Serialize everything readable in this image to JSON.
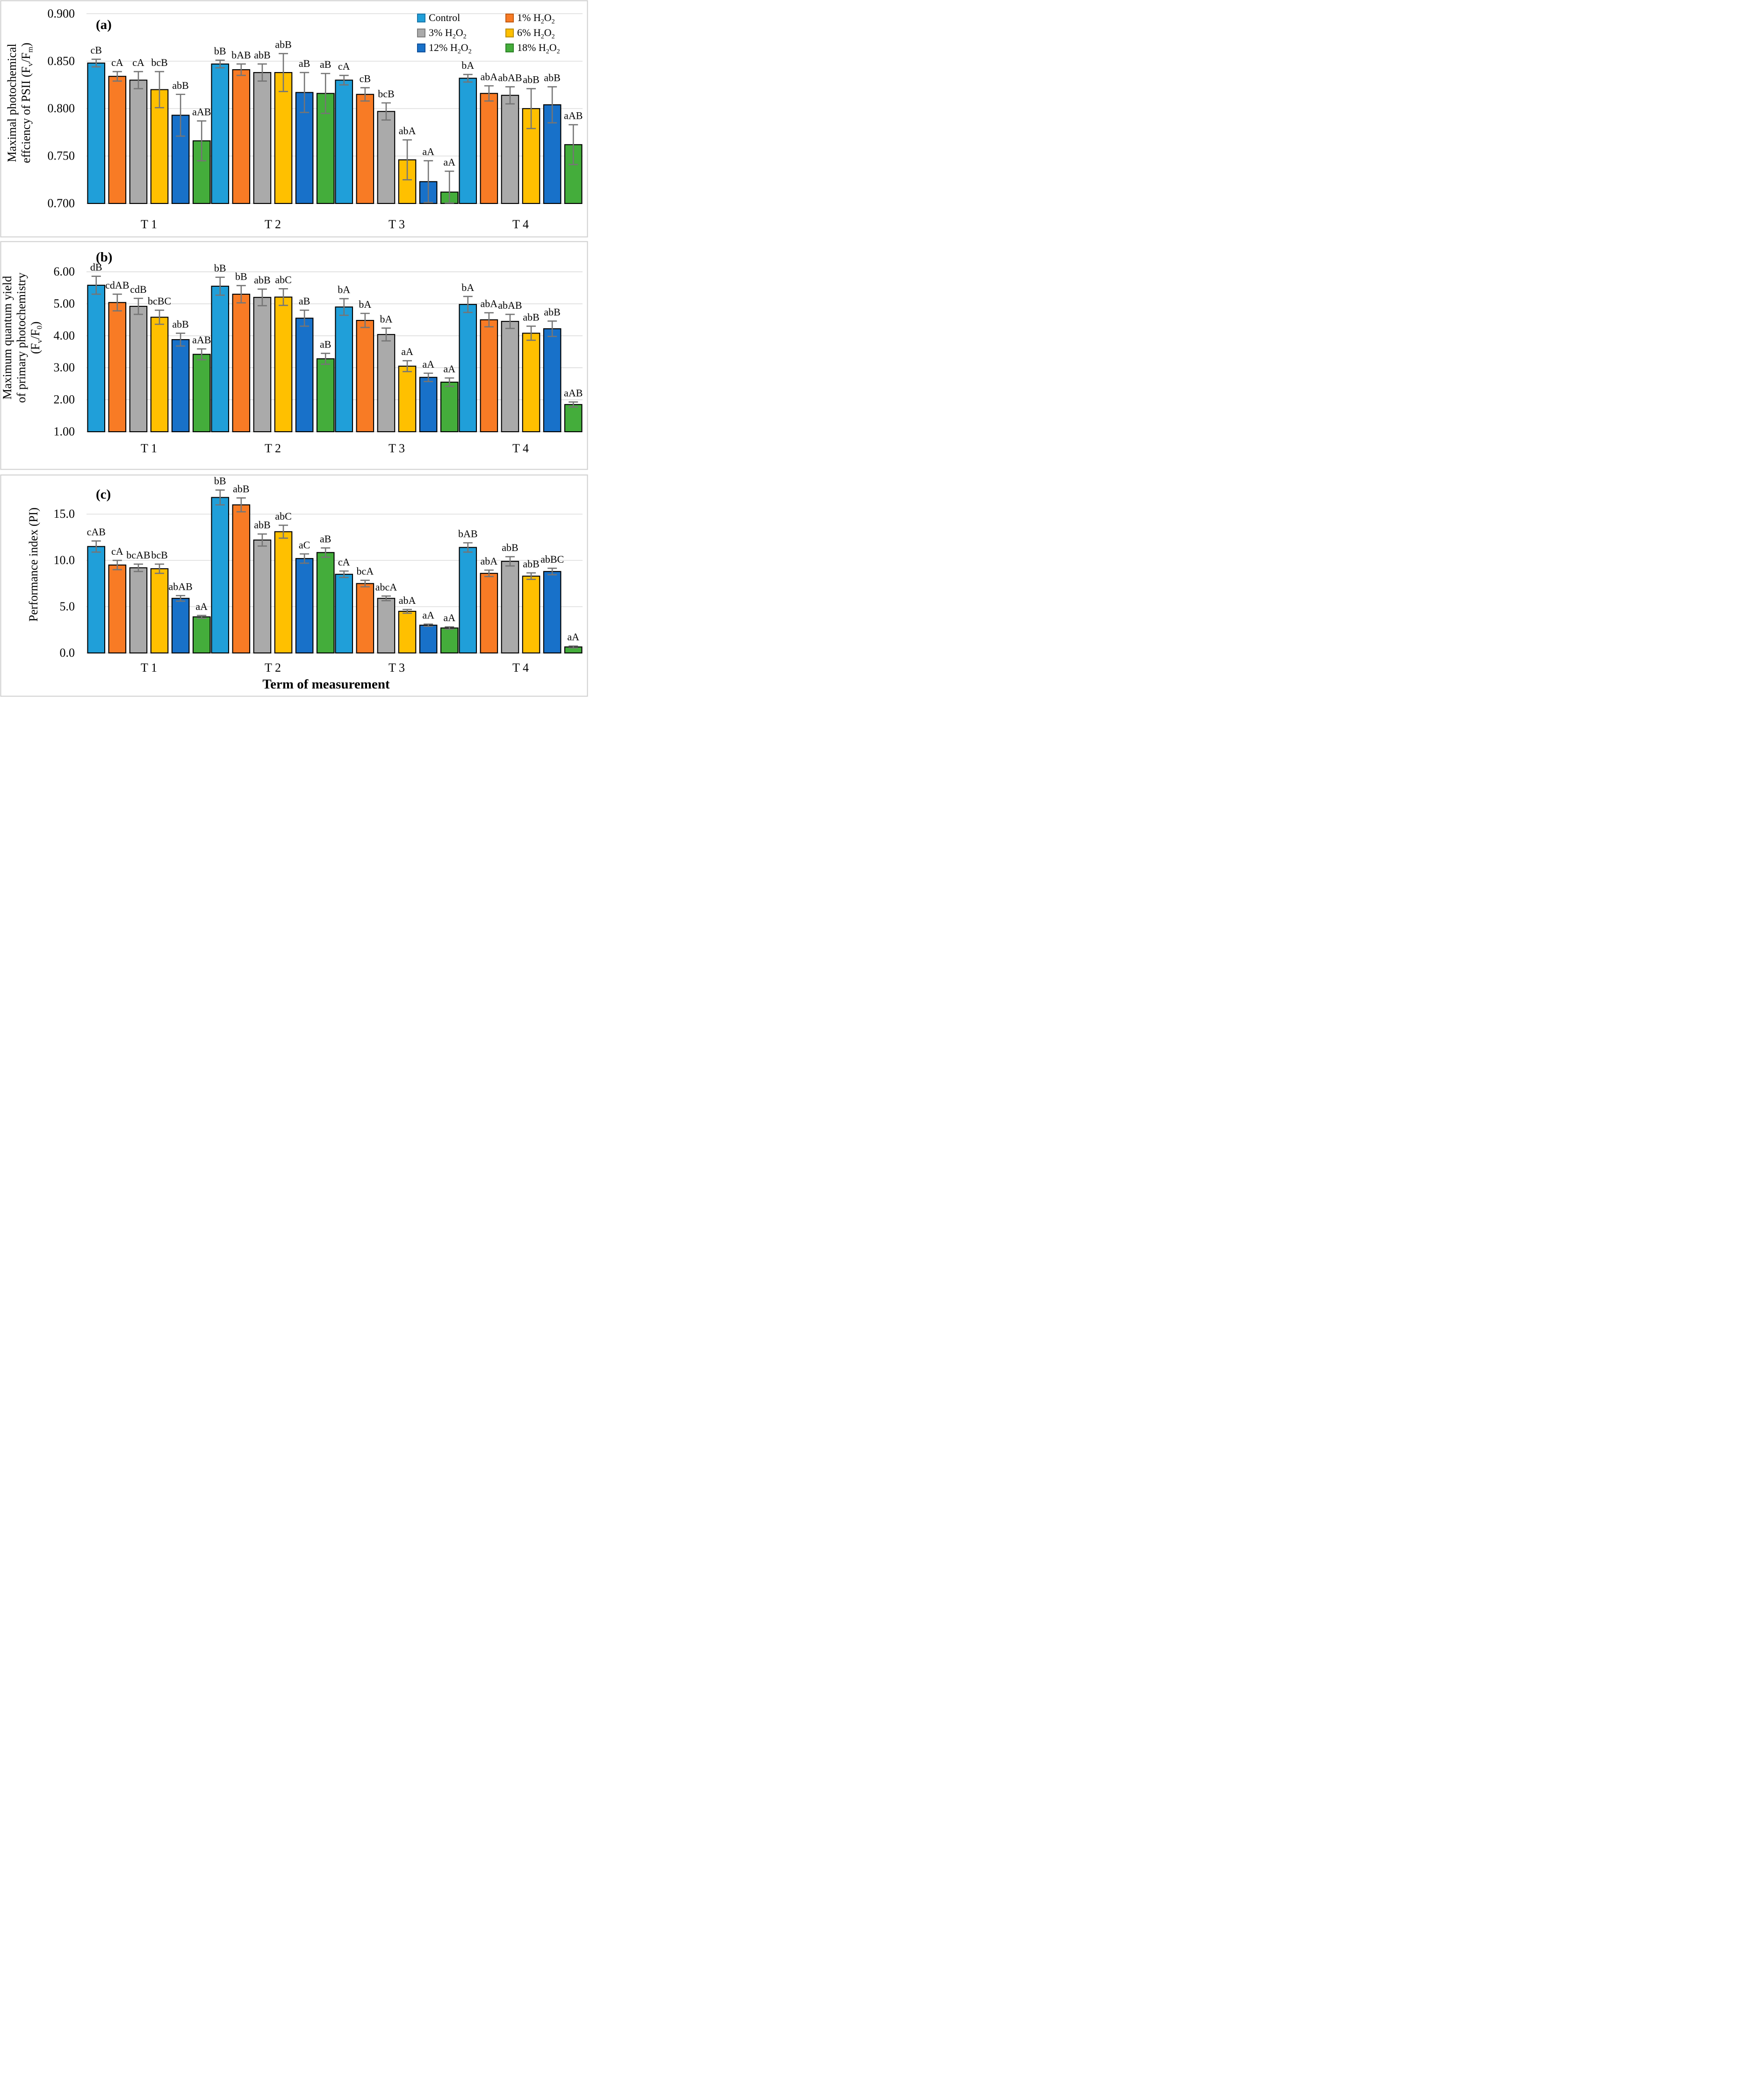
{
  "figure": {
    "x_axis_title": "Term of measurement",
    "categories": [
      "T 1",
      "T 2",
      "T 3",
      "T 4"
    ],
    "colors": {
      "grid": "#D9D9D9",
      "panel_border": "#CFCFCF",
      "bar_outline": "#000000",
      "error_bar": "#757575",
      "text": "#000000",
      "background": "#FFFFFF"
    },
    "legend": {
      "position": "top-right-of-panel-a",
      "items": [
        {
          "name": "Control",
          "segments": [
            {
              "t": "Control"
            }
          ]
        },
        {
          "name": "1% H2O2",
          "segments": [
            {
              "t": "1% H"
            },
            {
              "t": "2",
              "sub": true
            },
            {
              "t": "O"
            },
            {
              "t": "2",
              "sub": true
            }
          ]
        },
        {
          "name": "3% H2O2",
          "segments": [
            {
              "t": "3% H"
            },
            {
              "t": "2",
              "sub": true
            },
            {
              "t": "O"
            },
            {
              "t": "2",
              "sub": true
            }
          ]
        },
        {
          "name": "6% H2O2",
          "segments": [
            {
              "t": "6% H"
            },
            {
              "t": "2",
              "sub": true
            },
            {
              "t": "O"
            },
            {
              "t": "2",
              "sub": true
            }
          ]
        },
        {
          "name": "12% H2O2",
          "segments": [
            {
              "t": "12% H"
            },
            {
              "t": "2",
              "sub": true
            },
            {
              "t": "O"
            },
            {
              "t": "2",
              "sub": true
            }
          ]
        },
        {
          "name": "18% H2O2",
          "segments": [
            {
              "t": "18% H"
            },
            {
              "t": "2",
              "sub": true
            },
            {
              "t": "O"
            },
            {
              "t": "2",
              "sub": true
            }
          ]
        }
      ]
    }
  },
  "chart_data": [
    {
      "type": "bar",
      "panel_letter": "(a)",
      "ylabel": "Maximal photochemical effciency of PSII (Fv/Fm)",
      "ylabel_lines": [
        [
          {
            "t": "Maximal photochemical"
          }
        ],
        [
          {
            "t": "effciency of PSII (F"
          },
          {
            "t": "v",
            "sub": true
          },
          {
            "t": "/F"
          },
          {
            "t": "m",
            "sub": true
          },
          {
            "t": ")"
          }
        ]
      ],
      "categories": [
        "T 1",
        "T 2",
        "T 3",
        "T 4"
      ],
      "ylim": [
        0.7,
        0.9125
      ],
      "yticks": [
        0.7,
        0.75,
        0.8,
        0.85,
        0.9
      ],
      "ytick_labels": [
        "0.700",
        "0.750",
        "0.800",
        "0.850",
        "0.900"
      ],
      "grid": true,
      "legend_position": "top-right",
      "series": [
        {
          "name": "Control",
          "color": "#209FD9",
          "edge": "#1B76A8",
          "values": [
            0.848,
            0.847,
            0.83,
            0.832
          ],
          "errors": [
            0.004,
            0.004,
            0.005,
            0.004
          ],
          "sig_labels": [
            "cB",
            "bB",
            "cA",
            "bA"
          ]
        },
        {
          "name": "1% H2O2",
          "color": "#F87B25",
          "edge": "#C05A12",
          "values": [
            0.834,
            0.841,
            0.815,
            0.816
          ],
          "errors": [
            0.005,
            0.006,
            0.007,
            0.008
          ],
          "sig_labels": [
            "cA",
            "bAB",
            "cB",
            "abA"
          ]
        },
        {
          "name": "3% H2O2",
          "color": "#AAAAAA",
          "edge": "#7F7F7F",
          "values": [
            0.83,
            0.838,
            0.797,
            0.814
          ],
          "errors": [
            0.009,
            0.009,
            0.009,
            0.009
          ],
          "sig_labels": [
            "cA",
            "abB",
            "bcB",
            "abAB"
          ]
        },
        {
          "name": "6% H2O2",
          "color": "#FFC000",
          "edge": "#BC8E00",
          "values": [
            0.82,
            0.838,
            0.746,
            0.8
          ],
          "errors": [
            0.019,
            0.02,
            0.021,
            0.021
          ],
          "sig_labels": [
            "bcB",
            "abB",
            "abA",
            "abB"
          ]
        },
        {
          "name": "12% H2O2",
          "color": "#1871C9",
          "edge": "#10509A",
          "values": [
            0.793,
            0.817,
            0.723,
            0.804
          ],
          "errors": [
            0.022,
            0.021,
            0.022,
            0.019
          ],
          "sig_labels": [
            "abB",
            "aB",
            "aA",
            "abB"
          ]
        },
        {
          "name": "18% H2O2",
          "color": "#44AD3B",
          "edge": "#2E8127",
          "values": [
            0.766,
            0.816,
            0.712,
            0.762
          ],
          "errors": [
            0.021,
            0.021,
            0.022,
            0.021
          ],
          "sig_labels": [
            "aAB",
            "aB",
            "aA",
            "aAB"
          ]
        }
      ]
    },
    {
      "type": "bar",
      "panel_letter": "(b)",
      "ylabel": "Maximum quantum yield of primary photochemistry (Fv/F0)",
      "ylabel_lines": [
        [
          {
            "t": "Maximum quantum yield"
          }
        ],
        [
          {
            "t": "of primary photochemistry"
          }
        ],
        [
          {
            "t": "(F"
          },
          {
            "t": "v",
            "sub": true
          },
          {
            "t": "/F"
          },
          {
            "t": "0",
            "sub": true
          },
          {
            "t": ")"
          }
        ]
      ],
      "categories": [
        "T 1",
        "T 2",
        "T 3",
        "T 4"
      ],
      "ylim": [
        1.0,
        6.85
      ],
      "yticks": [
        1.0,
        2.0,
        3.0,
        4.0,
        5.0,
        6.0
      ],
      "ytick_labels": [
        "1.00",
        "2.00",
        "3.00",
        "4.00",
        "5.00",
        "6.00"
      ],
      "grid": true,
      "legend_position": "none",
      "series": [
        {
          "name": "Control",
          "color": "#209FD9",
          "edge": "#1B76A8",
          "values": [
            5.58,
            5.55,
            4.9,
            4.98
          ],
          "errors": [
            0.28,
            0.28,
            0.26,
            0.25
          ],
          "sig_labels": [
            "dB",
            "bB",
            "bA",
            "bA"
          ]
        },
        {
          "name": "1% H2O2",
          "color": "#F87B25",
          "edge": "#C05A12",
          "values": [
            5.04,
            5.3,
            4.48,
            4.5
          ],
          "errors": [
            0.26,
            0.27,
            0.22,
            0.22
          ],
          "sig_labels": [
            "cdAB",
            "bB",
            "bA",
            "abA"
          ]
        },
        {
          "name": "3% H2O2",
          "color": "#AAAAAA",
          "edge": "#7F7F7F",
          "values": [
            4.92,
            5.2,
            4.04,
            4.45
          ],
          "errors": [
            0.25,
            0.26,
            0.2,
            0.22
          ],
          "sig_labels": [
            "cdB",
            "abB",
            "bA",
            "abAB"
          ]
        },
        {
          "name": "6% H2O2",
          "color": "#FFC000",
          "edge": "#BC8E00",
          "values": [
            4.58,
            5.21,
            3.05,
            4.08
          ],
          "errors": [
            0.22,
            0.26,
            0.17,
            0.22
          ],
          "sig_labels": [
            "bcBC",
            "abC",
            "aA",
            "abB"
          ]
        },
        {
          "name": "12% H2O2",
          "color": "#1871C9",
          "edge": "#10509A",
          "values": [
            3.88,
            4.55,
            2.7,
            4.22
          ],
          "errors": [
            0.2,
            0.25,
            0.13,
            0.24
          ],
          "sig_labels": [
            "abB",
            "aB",
            "aA",
            "abB"
          ]
        },
        {
          "name": "18% H2O2",
          "color": "#44AD3B",
          "edge": "#2E8127",
          "values": [
            3.42,
            3.28,
            2.55,
            1.85
          ],
          "errors": [
            0.17,
            0.17,
            0.13,
            0.08
          ],
          "sig_labels": [
            "aAB",
            "aB",
            "aA",
            "aAB"
          ]
        }
      ]
    },
    {
      "type": "bar",
      "panel_letter": "(c)",
      "ylabel": "Performance index (PI)",
      "ylabel_lines": [
        [
          {
            "t": "Performance index (PI)"
          }
        ]
      ],
      "xlabel": "Term of measurement",
      "categories": [
        "T 1",
        "T 2",
        "T 3",
        "T 4"
      ],
      "ylim": [
        0.0,
        19.0
      ],
      "yticks": [
        0.0,
        5.0,
        10.0,
        15.0
      ],
      "ytick_labels": [
        "0.0",
        "5.0",
        "10.0",
        "15.0"
      ],
      "grid": true,
      "legend_position": "none",
      "series": [
        {
          "name": "Control",
          "color": "#209FD9",
          "edge": "#1B76A8",
          "values": [
            11.5,
            16.8,
            8.5,
            11.4
          ],
          "errors": [
            0.6,
            0.8,
            0.35,
            0.5
          ],
          "sig_labels": [
            "cAB",
            "bB",
            "cA",
            "bAB"
          ]
        },
        {
          "name": "1% H2O2",
          "color": "#F87B25",
          "edge": "#C05A12",
          "values": [
            9.5,
            16.0,
            7.5,
            8.6
          ],
          "errors": [
            0.5,
            0.75,
            0.35,
            0.35
          ],
          "sig_labels": [
            "cA",
            "abB",
            "bcA",
            "abA"
          ]
        },
        {
          "name": "3% H2O2",
          "color": "#AAAAAA",
          "edge": "#7F7F7F",
          "values": [
            9.2,
            12.2,
            5.9,
            9.9
          ],
          "errors": [
            0.4,
            0.65,
            0.25,
            0.5
          ],
          "sig_labels": [
            "bcAB",
            "abB",
            "abcA",
            "abB"
          ]
        },
        {
          "name": "6% H2O2",
          "color": "#FFC000",
          "edge": "#BC8E00",
          "values": [
            9.1,
            13.1,
            4.5,
            8.3
          ],
          "errors": [
            0.5,
            0.7,
            0.2,
            0.35
          ],
          "sig_labels": [
            "bcB",
            "abC",
            "abA",
            "abB"
          ]
        },
        {
          "name": "12% H2O2",
          "color": "#1871C9",
          "edge": "#10509A",
          "values": [
            5.9,
            10.2,
            3.0,
            8.8
          ],
          "errors": [
            0.3,
            0.5,
            0.12,
            0.35
          ],
          "sig_labels": [
            "abAB",
            "aC",
            "aA",
            "abBC"
          ]
        },
        {
          "name": "18% H2O2",
          "color": "#44AD3B",
          "edge": "#2E8127",
          "values": [
            3.9,
            10.85,
            2.7,
            0.65
          ],
          "errors": [
            0.15,
            0.5,
            0.12,
            0.1
          ],
          "sig_labels": [
            "aA",
            "aB",
            "aA",
            "aA"
          ]
        }
      ]
    }
  ]
}
